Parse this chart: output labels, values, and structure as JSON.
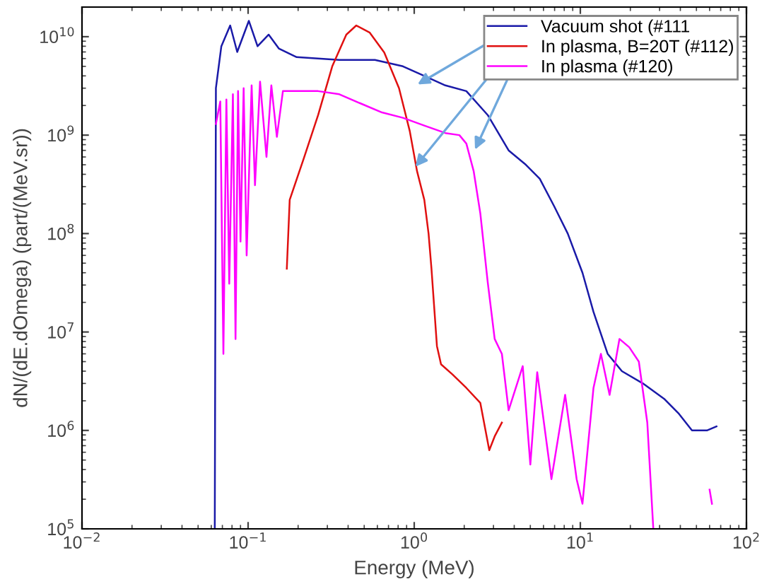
{
  "chart_data": {
    "type": "line",
    "xlabel": "Energy (MeV)",
    "ylabel": "dN/(dE.dOmega) (part/(MeV.sr))",
    "log": "xy",
    "grid": false,
    "legend": "top right",
    "xlim": [
      0.01,
      100
    ],
    "ylim": [
      100000,
      20000000000
    ],
    "xticks": [
      {
        "value": 0.01,
        "label": "10$^{−2}$"
      },
      {
        "value": 0.1,
        "label": "10$^{−1}$"
      },
      {
        "value": 1,
        "label": "10$^{0}$"
      },
      {
        "value": 10,
        "label": "10$^{1}$"
      },
      {
        "value": 100,
        "label": "10$^{2}$"
      }
    ],
    "yticks": [
      {
        "value": 100000,
        "label": "10$^{5}$"
      },
      {
        "value": 1000000,
        "label": "10$^{6}$"
      },
      {
        "value": 10000000,
        "label": "10$^{7}$"
      },
      {
        "value": 100000000,
        "label": "10$^{8}$"
      },
      {
        "value": 1000000000,
        "label": "10$^{9}$"
      },
      {
        "value": 10000000000,
        "label": "10$^{10}$"
      }
    ],
    "series": [
      {
        "name": "Vacuum shot (#111",
        "color": "#1a1aa8",
        "x": [
          0.063,
          0.064,
          0.069,
          0.078,
          0.086,
          0.101,
          0.114,
          0.133,
          0.153,
          0.196,
          0.354,
          0.58,
          0.855,
          1.15,
          1.54,
          2.06,
          2.77,
          3.7,
          4.7,
          5.7,
          6.95,
          8.4,
          10.3,
          12.0,
          14.6,
          17.8,
          23.8,
          31.9,
          38.9,
          47,
          57.8,
          66
        ],
        "values": [
          100000,
          3000000000,
          8000000000,
          13000000000,
          7000000000,
          14500000000,
          8000000000,
          10500000000,
          7600000000,
          6200000000,
          5800000000,
          5800000000,
          5000000000,
          4000000000,
          3200000000,
          2800000000,
          1600000000,
          700000000,
          500000000,
          360000000,
          190000000,
          100000000,
          40000000,
          16000000,
          6000000,
          4000000,
          3000000,
          2100000,
          1500000,
          1000000,
          1000000,
          1100000
        ]
      },
      {
        "name": "In plasma, B=20T (#112)",
        "color": "#e01010",
        "x": [
          0.171,
          0.178,
          0.217,
          0.264,
          0.321,
          0.39,
          0.448,
          0.54,
          0.66,
          0.81,
          0.94,
          1.04,
          1.15,
          1.22,
          1.27,
          1.37,
          1.45,
          1.7,
          2.06,
          2.5,
          2.83,
          3.05,
          3.37
        ],
        "values": [
          44000000,
          220000000,
          590000000,
          1600000000,
          5000000000,
          10500000000,
          13000000000,
          11000000000,
          6900000000,
          3000000000,
          1100000000,
          430000000,
          220000000,
          100000000,
          44000000,
          7200000,
          4700000,
          3700000,
          2700000,
          1900000,
          630000,
          870000,
          1200000
        ]
      },
      {
        "name": "In plasma (#120)",
        "color": "#ff00ff",
        "x": [
          0.064,
          0.068,
          0.071,
          0.074,
          0.077,
          0.081,
          0.084,
          0.087,
          0.09,
          0.094,
          0.098,
          0.105,
          0.11,
          0.118,
          0.129,
          0.138,
          0.149,
          0.162,
          0.195,
          0.264,
          0.354,
          0.475,
          0.64,
          0.855,
          1.15,
          1.54,
          1.87,
          2.06,
          2.28,
          2.5,
          2.77,
          3.05,
          3.37,
          3.7,
          4.5,
          5.0,
          5.5,
          6.7,
          8.1,
          9.5,
          10.3,
          12,
          13.3,
          15,
          17.2,
          19.7,
          22.5,
          25.3,
          27.5,
          40,
          60,
          62
        ],
        "values": [
          1300000000,
          2200000000,
          6000000,
          2300000000,
          31000000,
          2600000000,
          8500000,
          2800000000,
          83000000,
          3000000000,
          60000000,
          3200000000,
          310000000,
          3500000000,
          600000000,
          3200000000,
          960000000,
          2800000000,
          2800000000,
          2800000000,
          2600000000,
          2100000000,
          1700000000,
          1500000000,
          1250000000,
          1050000000,
          1000000000,
          820000000,
          430000000,
          160000000,
          32000000,
          8500000,
          6000000,
          1600000,
          4500000,
          450000,
          3900000,
          320000,
          2300000,
          320000,
          180000,
          2700000,
          6000000,
          2300000,
          8500000,
          7000000,
          5000000,
          1200000,
          100000,
          null,
          250000,
          180000
        ]
      }
    ]
  }
}
